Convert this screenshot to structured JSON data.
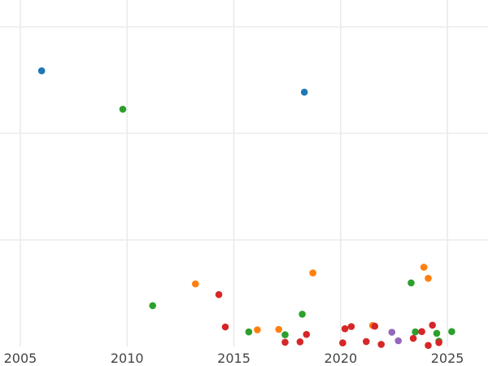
{
  "chart_data": {
    "type": "scatter",
    "title": "",
    "xlabel": "",
    "ylabel": "",
    "grid": true,
    "legend": "none",
    "x_ticks": [
      2005,
      2010,
      2015,
      2020,
      2025
    ],
    "xlim": [
      2004.05,
      2026.9
    ],
    "ylim": [
      0,
      100
    ],
    "y_gridlines": [
      30,
      60,
      90
    ],
    "colors": {
      "blue": "#1f77b4",
      "orange": "#ff7f0e",
      "green": "#2ca02c",
      "red": "#d62728",
      "purple": "#9467bd"
    },
    "points": [
      {
        "x": 2006.0,
        "y": 77.6,
        "color": "blue"
      },
      {
        "x": 2018.3,
        "y": 71.6,
        "color": "blue"
      },
      {
        "x": 2009.8,
        "y": 66.8,
        "color": "green"
      },
      {
        "x": 2011.2,
        "y": 11.5,
        "color": "green"
      },
      {
        "x": 2013.2,
        "y": 17.6,
        "color": "orange"
      },
      {
        "x": 2014.3,
        "y": 14.6,
        "color": "red"
      },
      {
        "x": 2014.6,
        "y": 5.5,
        "color": "red"
      },
      {
        "x": 2015.7,
        "y": 4.1,
        "color": "green"
      },
      {
        "x": 2016.1,
        "y": 4.7,
        "color": "orange"
      },
      {
        "x": 2017.1,
        "y": 4.8,
        "color": "orange"
      },
      {
        "x": 2017.4,
        "y": 3.3,
        "color": "green"
      },
      {
        "x": 2017.4,
        "y": 1.2,
        "color": "red"
      },
      {
        "x": 2018.1,
        "y": 1.3,
        "color": "red"
      },
      {
        "x": 2018.2,
        "y": 9.1,
        "color": "green"
      },
      {
        "x": 2018.4,
        "y": 3.4,
        "color": "red"
      },
      {
        "x": 2018.7,
        "y": 20.7,
        "color": "orange"
      },
      {
        "x": 2020.1,
        "y": 1.0,
        "color": "red"
      },
      {
        "x": 2020.2,
        "y": 5.0,
        "color": "red"
      },
      {
        "x": 2020.5,
        "y": 5.6,
        "color": "red"
      },
      {
        "x": 2021.2,
        "y": 1.4,
        "color": "red"
      },
      {
        "x": 2021.5,
        "y": 5.9,
        "color": "orange"
      },
      {
        "x": 2021.6,
        "y": 5.7,
        "color": "red"
      },
      {
        "x": 2021.9,
        "y": 0.6,
        "color": "red"
      },
      {
        "x": 2022.4,
        "y": 4.0,
        "color": "purple"
      },
      {
        "x": 2022.7,
        "y": 1.6,
        "color": "purple"
      },
      {
        "x": 2023.3,
        "y": 17.9,
        "color": "green"
      },
      {
        "x": 2023.4,
        "y": 2.3,
        "color": "red"
      },
      {
        "x": 2023.5,
        "y": 4.1,
        "color": "green"
      },
      {
        "x": 2023.8,
        "y": 4.2,
        "color": "red"
      },
      {
        "x": 2023.9,
        "y": 22.3,
        "color": "orange"
      },
      {
        "x": 2024.1,
        "y": 19.2,
        "color": "orange"
      },
      {
        "x": 2024.1,
        "y": 0.3,
        "color": "red"
      },
      {
        "x": 2024.3,
        "y": 6.0,
        "color": "red"
      },
      {
        "x": 2024.5,
        "y": 3.7,
        "color": "green"
      },
      {
        "x": 2024.6,
        "y": 1.5,
        "color": "green"
      },
      {
        "x": 2024.6,
        "y": 1.1,
        "color": "red"
      },
      {
        "x": 2025.2,
        "y": 4.2,
        "color": "green"
      }
    ]
  }
}
